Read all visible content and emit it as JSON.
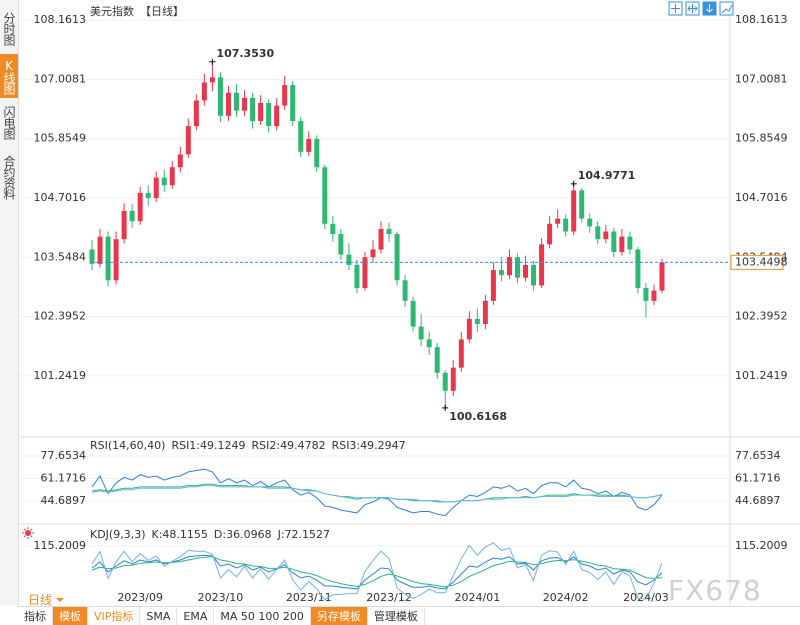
{
  "sidebar_tabs": [
    "分时图",
    "K线图",
    "闪电图",
    "合约资料"
  ],
  "period_selector": "日线",
  "toolbar": [
    "指标",
    "模板",
    "VIP指标",
    "SMA",
    "EMA",
    "MA 50 100 200",
    "另存模板",
    "管理模板"
  ],
  "watermark": "FX678",
  "chart_data": [
    {
      "type": "candlestick",
      "title": "美元指数",
      "subtitle": "【日线】",
      "up_color": "#e8374d",
      "down_color": "#2eb872",
      "last_price_color": "#3a8ee6",
      "grid": true,
      "ylim": [
        100.09,
        108.36
      ],
      "yticks": [
        108.1613,
        107.0081,
        105.8549,
        104.7016,
        103.5484,
        102.3952,
        101.2419
      ],
      "categories": [
        null,
        null,
        null,
        null,
        null,
        null,
        "2023/09",
        null,
        null,
        null,
        null,
        null,
        null,
        null,
        null,
        null,
        "2023/10",
        null,
        null,
        null,
        null,
        null,
        null,
        null,
        null,
        null,
        null,
        "2023/11",
        null,
        null,
        null,
        null,
        null,
        null,
        null,
        null,
        null,
        "2023/12",
        null,
        null,
        null,
        null,
        null,
        null,
        null,
        null,
        null,
        null,
        "2024/01",
        null,
        null,
        null,
        null,
        null,
        null,
        null,
        null,
        null,
        null,
        "2024/02",
        null,
        null,
        null,
        null,
        null,
        null,
        null,
        null,
        null,
        "2024/03",
        null,
        null
      ],
      "open": [
        103.7,
        103.42,
        103.95,
        103.1,
        103.9,
        104.45,
        104.25,
        104.8,
        104.7,
        105.1,
        104.95,
        105.3,
        105.55,
        106.1,
        106.6,
        106.95,
        107.05,
        106.3,
        106.75,
        106.4,
        106.65,
        106.2,
        106.55,
        106.1,
        106.5,
        106.9,
        106.2,
        105.6,
        105.85,
        105.3,
        104.2,
        104.0,
        103.6,
        103.4,
        102.95,
        103.55,
        103.7,
        104.1,
        104.0,
        103.1,
        102.7,
        102.2,
        101.95,
        101.8,
        101.3,
        100.95,
        101.4,
        101.95,
        102.35,
        102.25,
        102.7,
        103.3,
        103.2,
        103.55,
        103.15,
        103.4,
        103.0,
        103.8,
        104.2,
        104.3,
        104.05,
        104.85,
        104.3,
        104.15,
        103.9,
        104.05,
        103.65,
        103.95,
        103.7,
        102.95,
        102.7,
        102.9
      ],
      "high": [
        103.88,
        104.1,
        104.05,
        104.05,
        104.6,
        104.58,
        104.92,
        104.95,
        105.22,
        105.25,
        105.42,
        105.7,
        106.25,
        106.72,
        107.12,
        107.353,
        107.15,
        106.88,
        106.92,
        106.8,
        106.75,
        106.7,
        106.62,
        106.65,
        107.08,
        106.98,
        106.28,
        106.0,
        105.92,
        105.35,
        104.35,
        104.1,
        103.82,
        103.5,
        103.65,
        103.88,
        104.25,
        104.22,
        104.05,
        103.2,
        102.78,
        102.45,
        102.1,
        101.88,
        101.35,
        101.55,
        102.1,
        102.5,
        102.55,
        102.82,
        103.45,
        103.55,
        103.7,
        103.62,
        103.58,
        103.48,
        103.92,
        104.35,
        104.48,
        104.38,
        104.9771,
        104.9,
        104.4,
        104.25,
        104.18,
        104.12,
        104.1,
        104.05,
        103.75,
        103.05,
        103.02,
        103.52
      ],
      "low": [
        103.3,
        103.35,
        102.98,
        103.02,
        103.82,
        104.12,
        104.18,
        104.55,
        104.62,
        104.82,
        104.88,
        105.2,
        105.48,
        106.02,
        106.5,
        106.78,
        106.18,
        106.2,
        106.28,
        106.3,
        106.05,
        106.12,
        105.98,
        106.02,
        106.42,
        106.1,
        105.5,
        105.52,
        105.2,
        104.1,
        103.85,
        103.5,
        103.3,
        102.85,
        102.9,
        103.45,
        103.62,
        103.85,
        103.0,
        102.58,
        102.1,
        101.82,
        101.65,
        101.18,
        100.6168,
        100.85,
        101.32,
        101.88,
        102.1,
        102.15,
        102.62,
        103.08,
        103.12,
        103.05,
        103.08,
        102.9,
        102.95,
        103.72,
        104.12,
        103.95,
        103.98,
        104.22,
        104.02,
        103.8,
        103.82,
        103.55,
        103.58,
        103.6,
        102.85,
        102.38,
        102.62,
        102.85
      ],
      "close": [
        103.42,
        103.95,
        103.1,
        103.9,
        104.45,
        104.25,
        104.8,
        104.7,
        105.1,
        104.95,
        105.3,
        105.55,
        106.1,
        106.6,
        106.95,
        107.05,
        106.3,
        106.75,
        106.4,
        106.65,
        106.2,
        106.55,
        106.1,
        106.5,
        106.9,
        106.2,
        105.6,
        105.85,
        105.3,
        104.2,
        104.0,
        103.6,
        103.4,
        102.95,
        103.55,
        103.7,
        104.1,
        104.0,
        103.1,
        102.7,
        102.2,
        101.95,
        101.8,
        101.3,
        100.95,
        101.4,
        101.95,
        102.35,
        102.25,
        102.7,
        103.3,
        103.2,
        103.55,
        103.15,
        103.4,
        103.0,
        103.8,
        104.2,
        104.3,
        104.05,
        104.85,
        104.3,
        104.15,
        103.9,
        104.05,
        103.65,
        103.95,
        103.7,
        102.95,
        102.7,
        102.9,
        103.4498
      ],
      "annotations": [
        {
          "value": 107.353,
          "label": "107.3530",
          "color": "#e8374d"
        },
        {
          "value": 104.9771,
          "label": "104.9771",
          "color": "#e8374d"
        },
        {
          "value": 100.6168,
          "label": "100.6168",
          "color": "#2eb872"
        }
      ]
    },
    {
      "type": "line",
      "title": "RSI(14,60,40)",
      "grid": true,
      "ylim": [
        30.77,
        89.37
      ],
      "yticks": [
        77.6534,
        61.1716,
        44.6897
      ],
      "series": [
        {
          "name": "RSI1:49.1249",
          "color": "#2f7fe0",
          "values": [
            55,
            63,
            50,
            58,
            62,
            60,
            64,
            62,
            63,
            60,
            62,
            63,
            66,
            67,
            68,
            66,
            58,
            61,
            58,
            60,
            56,
            59,
            55,
            58,
            60,
            53,
            49,
            51,
            47,
            41,
            40,
            38,
            37,
            36,
            42,
            44,
            47,
            46,
            40,
            38,
            36,
            37,
            37,
            35,
            34,
            40,
            45,
            49,
            48,
            51,
            55,
            54,
            56,
            52,
            54,
            50,
            56,
            58,
            58,
            55,
            60,
            54,
            53,
            50,
            52,
            48,
            51,
            49,
            40,
            38,
            42,
            49.1249
          ]
        },
        {
          "name": "RSI2:49.4782",
          "color": "#2db37a",
          "values": [
            52,
            53,
            52,
            53,
            54,
            54,
            55,
            55,
            55,
            55,
            55,
            55,
            56,
            56,
            57,
            57,
            56,
            56,
            56,
            56,
            55,
            55,
            55,
            55,
            55,
            54,
            53,
            53,
            52,
            50,
            49,
            48,
            47,
            46,
            47,
            47,
            47,
            47,
            46,
            46,
            45,
            45,
            45,
            44,
            44,
            44,
            45,
            45,
            45,
            46,
            47,
            47,
            47,
            47,
            48,
            47,
            48,
            49,
            49,
            49,
            50,
            49,
            49,
            49,
            49,
            48,
            49,
            48,
            47,
            47,
            48,
            49.4782
          ]
        },
        {
          "name": "RSI3:49.2947",
          "color": "#6fb3ea",
          "values": [
            51,
            52,
            51,
            52,
            53,
            53,
            54,
            54,
            54,
            54,
            54,
            54,
            55,
            55,
            56,
            56,
            55,
            55,
            55,
            55,
            55,
            55,
            54,
            54,
            54,
            54,
            53,
            52,
            52,
            50,
            49,
            48,
            48,
            47,
            47,
            47,
            47,
            47,
            46,
            46,
            46,
            45,
            45,
            45,
            44,
            44,
            45,
            45,
            45,
            46,
            46,
            46,
            47,
            47,
            47,
            47,
            48,
            48,
            48,
            48,
            49,
            49,
            49,
            48,
            48,
            48,
            48,
            48,
            47,
            47,
            48,
            49.2947
          ]
        }
      ]
    },
    {
      "type": "line",
      "title": "KDJ(9,3,3)",
      "grid": true,
      "ylim": [
        -20,
        160
      ],
      "yticks": [
        115.2009
      ],
      "series": [
        {
          "name": "K:48.1155",
          "color": "#2f7fe0",
          "values": [
            60,
            75,
            50,
            65,
            78,
            70,
            80,
            75,
            80,
            70,
            75,
            80,
            88,
            90,
            92,
            90,
            65,
            70,
            60,
            68,
            55,
            62,
            50,
            58,
            68,
            48,
            35,
            40,
            30,
            15,
            15,
            12,
            10,
            8,
            30,
            45,
            60,
            58,
            30,
            20,
            12,
            12,
            15,
            10,
            8,
            25,
            45,
            65,
            62,
            75,
            85,
            82,
            88,
            70,
            72,
            55,
            78,
            85,
            86,
            75,
            88,
            70,
            65,
            55,
            60,
            45,
            55,
            50,
            25,
            18,
            30,
            48.1155
          ]
        },
        {
          "name": "D:36.0968",
          "color": "#2db37a",
          "values": [
            55,
            62,
            58,
            60,
            66,
            67,
            72,
            73,
            75,
            73,
            74,
            76,
            80,
            84,
            87,
            88,
            80,
            77,
            71,
            70,
            65,
            64,
            59,
            59,
            62,
            57,
            50,
            47,
            41,
            32,
            26,
            21,
            17,
            14,
            19,
            28,
            39,
            45,
            40,
            33,
            26,
            21,
            19,
            16,
            13,
            17,
            26,
            39,
            47,
            56,
            66,
            71,
            77,
            75,
            74,
            68,
            71,
            76,
            79,
            78,
            81,
            77,
            73,
            67,
            65,
            58,
            57,
            55,
            45,
            36,
            34,
            36.0968
          ]
        },
        {
          "name": "J:72.1527",
          "color": "#6fb3ea",
          "values": [
            70,
            101,
            34,
            75,
            102,
            76,
            96,
            79,
            90,
            64,
            77,
            88,
            104,
            102,
            102,
            94,
            35,
            56,
            38,
            64,
            35,
            58,
            32,
            56,
            80,
            30,
            5,
            26,
            8,
            -19,
            -7,
            -6,
            -4,
            -4,
            52,
            79,
            102,
            84,
            10,
            -6,
            -16,
            -6,
            7,
            -2,
            -2,
            41,
            83,
            117,
            92,
            113,
            123,
            104,
            110,
            60,
            68,
            29,
            92,
            103,
            100,
            69,
            102,
            56,
            49,
            31,
            50,
            19,
            51,
            40,
            -15,
            -18,
            22,
            72.1527
          ]
        }
      ]
    }
  ]
}
